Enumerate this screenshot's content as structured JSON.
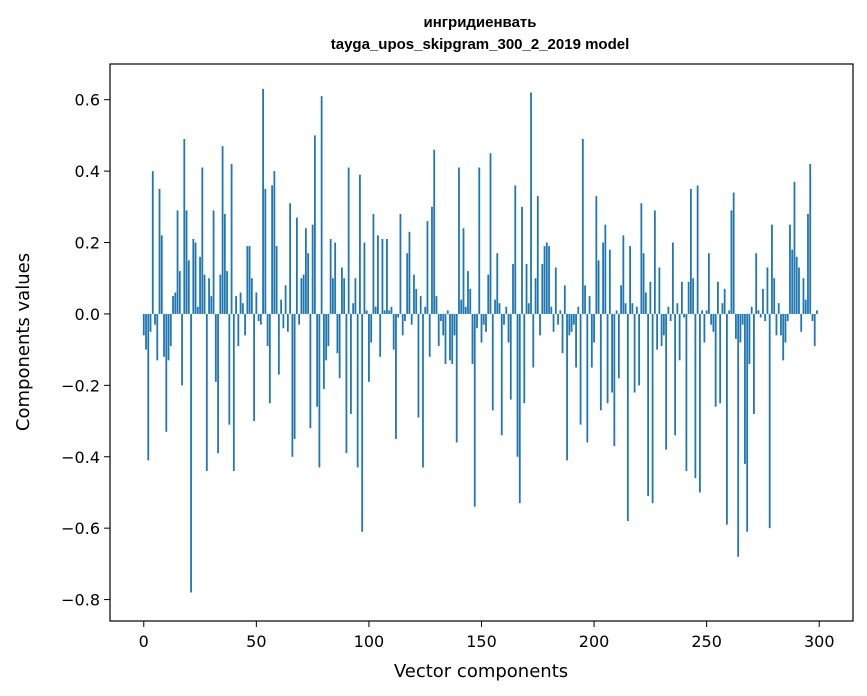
{
  "chart_data": {
    "type": "bar",
    "title": "ингридиенвать",
    "subtitle": "tayga_upos_skipgram_300_2_2019 model",
    "xlabel": "Vector components",
    "ylabel": "Components values",
    "xlim": [
      -15,
      315
    ],
    "ylim": [
      -0.86,
      0.7
    ],
    "xticks": [
      0,
      50,
      100,
      150,
      200,
      250,
      300
    ],
    "yticks": [
      -0.8,
      -0.6,
      -0.4,
      -0.2,
      0.0,
      0.2,
      0.4,
      0.6
    ],
    "xtick_labels": [
      "0",
      "50",
      "100",
      "150",
      "200",
      "250",
      "300"
    ],
    "ytick_labels": [
      "−0.8",
      "−0.6",
      "−0.4",
      "−0.2",
      "0.0",
      "0.2",
      "0.4",
      "0.6"
    ],
    "bar_color": "#1f77b4",
    "grid": false,
    "x": "0..299 (component index)",
    "values": [
      -0.06,
      -0.1,
      -0.41,
      -0.05,
      0.4,
      -0.03,
      -0.13,
      0.35,
      0.22,
      -0.12,
      -0.33,
      -0.13,
      -0.09,
      0.05,
      0.06,
      0.29,
      0.12,
      -0.2,
      0.49,
      0.29,
      0.15,
      -0.78,
      0.21,
      0.2,
      0.02,
      0.16,
      0.41,
      0.11,
      -0.44,
      0.1,
      0.05,
      0.29,
      -0.19,
      -0.39,
      0.11,
      0.47,
      0.28,
      0.12,
      -0.31,
      0.42,
      -0.44,
      0.05,
      -0.09,
      0.06,
      0.03,
      -0.06,
      0.19,
      0.19,
      0.1,
      -0.3,
      0.06,
      -0.02,
      -0.03,
      0.63,
      0.35,
      -0.09,
      -0.25,
      0.36,
      0.4,
      0.19,
      -0.17,
      0.04,
      -0.04,
      0.08,
      -0.05,
      0.31,
      -0.4,
      -0.35,
      0.27,
      -0.03,
      0.1,
      0.11,
      0.24,
      0.17,
      -0.32,
      0.25,
      0.5,
      -0.26,
      -0.43,
      0.61,
      -0.21,
      -0.13,
      -0.09,
      0.21,
      0.1,
      0.2,
      -0.11,
      -0.18,
      0.13,
      0.1,
      -0.39,
      0.41,
      -0.28,
      0.03,
      0.1,
      -0.43,
      0.39,
      -0.61,
      0.2,
      0.01,
      -0.19,
      -0.08,
      0.28,
      0.02,
      0.22,
      -0.12,
      0.21,
      0.01,
      0.21,
      0.01,
      0.02,
      -0.1,
      -0.35,
      -0.01,
      0.28,
      -0.06,
      -0.02,
      0.17,
      0.23,
      -0.03,
      0.11,
      0.07,
      -0.29,
      0.05,
      -0.43,
      0.02,
      0.26,
      -0.12,
      0.3,
      0.46,
      0.05,
      -0.09,
      -0.02,
      -0.06,
      -0.14,
      0.01,
      -0.13,
      -0.14,
      -0.06,
      -0.36,
      0.41,
      0.04,
      0.24,
      0.02,
      0.12,
      0.07,
      -0.14,
      -0.54,
      -0.04,
      0.41,
      -0.08,
      -0.03,
      -0.05,
      0.11,
      0.45,
      -0.27,
      0.04,
      0.17,
      0.03,
      -0.34,
      -0.03,
      0.02,
      -0.08,
      -0.24,
      0.14,
      0.36,
      -0.4,
      -0.53,
      0.3,
      -0.25,
      0.14,
      0.03,
      0.62,
      -0.15,
      0.1,
      0.33,
      -0.06,
      0.14,
      0.19,
      0.2,
      0.19,
      0.02,
      -0.05,
      0.13,
      -0.03,
      0.01,
      -0.11,
      0.08,
      -0.41,
      -0.06,
      -0.05,
      -0.03,
      -0.15,
      0.02,
      -0.31,
      0.49,
      0.08,
      -0.36,
      0.05,
      -0.15,
      -0.08,
      0.33,
      0.15,
      -0.27,
      0.2,
      0.25,
      -0.25,
      0.18,
      -0.22,
      -0.37,
      0.01,
      -0.18,
      0.08,
      0.22,
      0.03,
      -0.58,
      0.19,
      0.03,
      -0.22,
      0.02,
      -0.2,
      0.31,
      0.17,
      0.06,
      -0.51,
      0.09,
      -0.53,
      0.29,
      -0.1,
      0.13,
      -0.09,
      -0.06,
      -0.38,
      0.02,
      -0.02,
      0.2,
      -0.34,
      0.03,
      -0.13,
      0.09,
      -0.01,
      -0.44,
      0.09,
      0.35,
      0.1,
      -0.46,
      0.36,
      -0.5,
      0.01,
      -0.08,
      0.01,
      0.17,
      -0.03,
      -0.05,
      -0.26,
      0.09,
      -0.25,
      0.03,
      0.07,
      -0.59,
      0.01,
      0.29,
      0.34,
      -0.07,
      -0.68,
      -0.08,
      -0.03,
      -0.42,
      -0.61,
      -0.14,
      0.02,
      -0.28,
      0.17,
      0.01,
      -0.01,
      0.07,
      -0.02,
      0.13,
      -0.6,
      0.25,
      0.1,
      -0.06,
      0.03,
      -0.06,
      -0.13,
      -0.08,
      -0.02,
      0.25,
      0.18,
      0.37,
      0.16,
      0.13,
      -0.05,
      0.1,
      0.04,
      0.28,
      0.42,
      -0.02,
      -0.09,
      0.01
    ]
  }
}
